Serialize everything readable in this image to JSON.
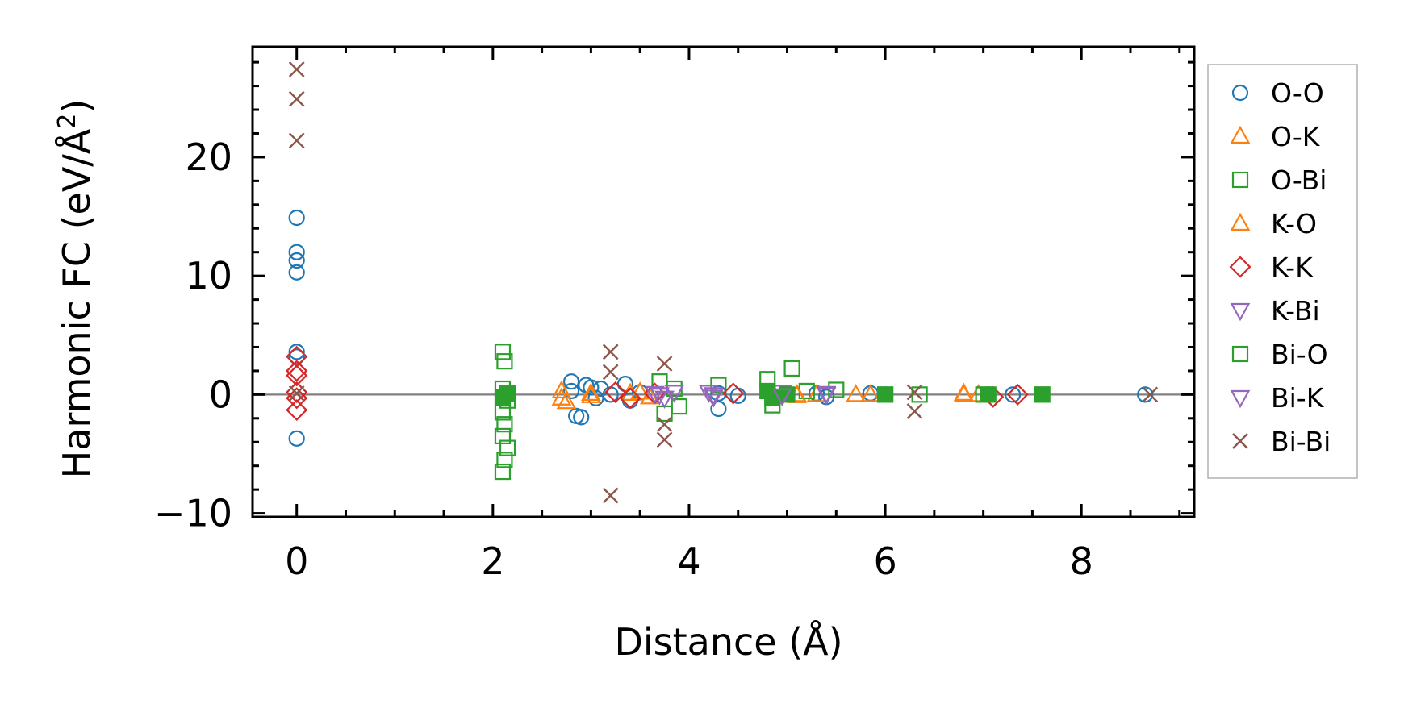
{
  "chart_data": {
    "type": "scatter",
    "title": "",
    "xlabel": "Distance (Å)",
    "ylabel_main": "Harmonic FC (eV/Å",
    "ylabel_sup": "2",
    "ylabel_close": ")",
    "xlim": [
      -0.45,
      9.15
    ],
    "ylim": [
      -10.3,
      29.3
    ],
    "xticks": [
      0,
      2,
      4,
      6,
      8
    ],
    "xtick_labels": [
      "0",
      "2",
      "4",
      "6",
      "8"
    ],
    "yticks": [
      -10,
      0,
      10,
      20
    ],
    "ytick_labels": [
      "−10",
      "0",
      "10",
      "20"
    ],
    "zero_line": true,
    "grid": false,
    "legend_position": "outside-right",
    "series": [
      {
        "name": "O-O",
        "marker": "circle",
        "filled": false,
        "color": "#1f77b4",
        "points": [
          [
            0,
            14.9
          ],
          [
            0,
            12.0
          ],
          [
            0,
            11.3
          ],
          [
            0,
            10.3
          ],
          [
            0,
            3.6
          ],
          [
            0,
            3.2
          ],
          [
            0,
            -3.7
          ],
          [
            2.8,
            1.1
          ],
          [
            2.8,
            0.3
          ],
          [
            2.85,
            -1.8
          ],
          [
            2.9,
            -1.9
          ],
          [
            2.95,
            0.8
          ],
          [
            3.0,
            0.6
          ],
          [
            3.05,
            -0.3
          ],
          [
            3.1,
            0.5
          ],
          [
            3.2,
            0.0
          ],
          [
            3.35,
            0.9
          ],
          [
            3.4,
            -0.5
          ],
          [
            3.5,
            0.2
          ],
          [
            4.3,
            -1.2
          ],
          [
            4.3,
            0.1
          ],
          [
            4.5,
            -0.1
          ],
          [
            5.3,
            0.1
          ],
          [
            5.4,
            -0.2
          ],
          [
            5.85,
            0.1
          ],
          [
            6.0,
            0.0
          ],
          [
            7.05,
            0.0
          ],
          [
            7.3,
            0.0
          ],
          [
            8.65,
            0.0
          ]
        ]
      },
      {
        "name": "O-K",
        "marker": "triangle-up",
        "filled": false,
        "color": "#ff7f0e",
        "points": [
          [
            2.7,
            0.3
          ],
          [
            2.75,
            -0.6
          ],
          [
            3.0,
            0.1
          ],
          [
            3.5,
            0.2
          ],
          [
            3.6,
            -0.2
          ],
          [
            5.1,
            0.0
          ],
          [
            5.3,
            0.0
          ],
          [
            5.7,
            0.0
          ],
          [
            5.85,
            0.0
          ],
          [
            6.8,
            0.0
          ],
          [
            6.95,
            0.0
          ]
        ]
      },
      {
        "name": "O-Bi",
        "marker": "square",
        "filled": false,
        "color": "#2ca02c",
        "points": [
          [
            2.1,
            3.6
          ],
          [
            2.12,
            2.8
          ],
          [
            2.1,
            0.5
          ],
          [
            2.15,
            -0.5
          ],
          [
            2.1,
            -1.5
          ],
          [
            2.12,
            -2.5
          ],
          [
            2.1,
            -3.5
          ],
          [
            2.15,
            -4.5
          ],
          [
            2.12,
            -5.5
          ],
          [
            2.1,
            -6.5
          ],
          [
            3.7,
            1.1
          ],
          [
            3.75,
            -1.6
          ],
          [
            3.85,
            0.5
          ],
          [
            3.9,
            -1.0
          ],
          [
            4.3,
            0.8
          ],
          [
            4.8,
            1.3
          ],
          [
            4.85,
            -0.9
          ],
          [
            5.05,
            2.2
          ],
          [
            5.2,
            0.3
          ],
          [
            5.5,
            0.4
          ],
          [
            6.0,
            0.0
          ],
          [
            6.35,
            0.0
          ],
          [
            7.0,
            0.0
          ],
          [
            7.6,
            0.0
          ]
        ]
      },
      {
        "name": "K-O",
        "marker": "triangle-up",
        "filled": false,
        "color": "#ff7f0e",
        "points": [
          [
            2.7,
            -0.3
          ],
          [
            3.0,
            -0.1
          ],
          [
            3.4,
            0.1
          ],
          [
            5.1,
            -0.1
          ],
          [
            6.8,
            0.1
          ]
        ]
      },
      {
        "name": "K-K",
        "marker": "diamond",
        "filled": false,
        "color": "#d62728",
        "points": [
          [
            0,
            3.2
          ],
          [
            0,
            2.0
          ],
          [
            0,
            1.6
          ],
          [
            0,
            0.2
          ],
          [
            0,
            -0.3
          ],
          [
            0,
            -1.3
          ],
          [
            3.25,
            0.2
          ],
          [
            3.4,
            -0.3
          ],
          [
            3.65,
            0.1
          ],
          [
            4.45,
            0.1
          ],
          [
            7.1,
            -0.2
          ],
          [
            7.35,
            0.0
          ]
        ]
      },
      {
        "name": "K-Bi",
        "marker": "triangle-down",
        "filled": false,
        "color": "#9467bd",
        "points": [
          [
            3.65,
            0.1
          ],
          [
            3.75,
            -0.3
          ],
          [
            3.85,
            0.2
          ],
          [
            4.2,
            0.2
          ],
          [
            4.25,
            -0.2
          ],
          [
            4.95,
            0.2
          ],
          [
            5.4,
            0.0
          ]
        ]
      },
      {
        "name": "Bi-O",
        "marker": "square",
        "filled": true,
        "color": "#2ca02c",
        "points": [
          [
            2.1,
            -0.2
          ],
          [
            2.15,
            0.1
          ],
          [
            4.8,
            0.3
          ],
          [
            4.85,
            -0.3
          ],
          [
            5.0,
            0.0
          ],
          [
            6.0,
            0.0
          ],
          [
            7.05,
            0.0
          ],
          [
            7.6,
            0.0
          ]
        ]
      },
      {
        "name": "Bi-K",
        "marker": "triangle-down",
        "filled": false,
        "color": "#9467bd",
        "points": [
          [
            3.7,
            0.0
          ],
          [
            4.25,
            0.0
          ],
          [
            4.95,
            -0.1
          ],
          [
            5.4,
            0.1
          ]
        ]
      },
      {
        "name": "Bi-Bi",
        "marker": "x",
        "filled": false,
        "color": "#8c564b",
        "points": [
          [
            0,
            27.4
          ],
          [
            0,
            24.9
          ],
          [
            0,
            21.4
          ],
          [
            0,
            0.1
          ],
          [
            3.2,
            3.6
          ],
          [
            3.2,
            1.9
          ],
          [
            3.2,
            -8.5
          ],
          [
            3.75,
            2.6
          ],
          [
            3.75,
            -2.5
          ],
          [
            3.75,
            -3.8
          ],
          [
            6.3,
            -1.4
          ],
          [
            6.3,
            0.2
          ],
          [
            8.7,
            0.0
          ]
        ]
      }
    ]
  },
  "legend": {
    "items": [
      "O-O",
      "O-K",
      "O-Bi",
      "K-O",
      "K-K",
      "K-Bi",
      "Bi-O",
      "Bi-K",
      "Bi-Bi"
    ]
  }
}
